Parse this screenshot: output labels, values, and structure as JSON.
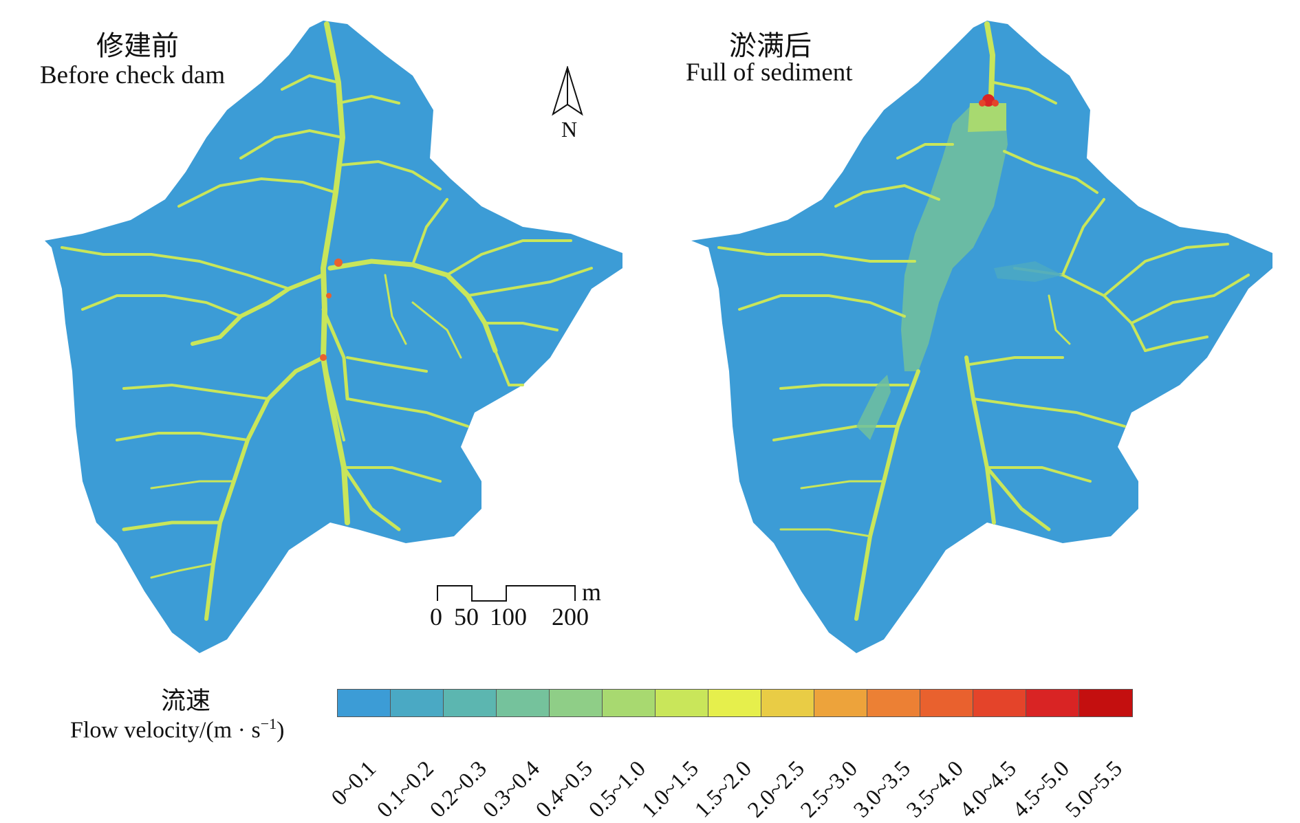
{
  "panels": [
    {
      "title_cn": "修建前",
      "title_en": "Before check dam"
    },
    {
      "title_cn": "淤满后",
      "title_en": "Full of sediment"
    }
  ],
  "north_label": "N",
  "scale": {
    "unit": "m",
    "ticks": [
      "0",
      "50",
      "100",
      "200"
    ]
  },
  "legend": {
    "title_cn": "流速",
    "title_en": "Flow velocity/(m · s",
    "title_en_sup": "−1",
    "title_en_end": ")",
    "classes": [
      {
        "label": "0~0.1",
        "color": "#3c9cd6"
      },
      {
        "label": "0.1~0.2",
        "color": "#4aa9c4"
      },
      {
        "label": "0.2~0.3",
        "color": "#5cb6b0"
      },
      {
        "label": "0.3~0.4",
        "color": "#75c29c"
      },
      {
        "label": "0.4~0.5",
        "color": "#8fce87"
      },
      {
        "label": "0.5~1.0",
        "color": "#a8d970"
      },
      {
        "label": "1.0~1.5",
        "color": "#c9e65a"
      },
      {
        "label": "1.5~2.0",
        "color": "#e6ef4c"
      },
      {
        "label": "2.0~2.5",
        "color": "#e9cc45"
      },
      {
        "label": "2.5~3.0",
        "color": "#eda33b"
      },
      {
        "label": "3.0~3.5",
        "color": "#ec8034"
      },
      {
        "label": "3.5~4.0",
        "color": "#e9612e"
      },
      {
        "label": "4.0~4.5",
        "color": "#e4442a"
      },
      {
        "label": "4.5~5.0",
        "color": "#d92424"
      },
      {
        "label": "5.0~5.5",
        "color": "#c40f0f"
      }
    ]
  },
  "colors": {
    "basin": "#3c9cd6",
    "channel": "#c9e65a",
    "channel_bright": "#e6ef4c",
    "dam": "#d92424",
    "sediment": "#6fbf9f"
  }
}
